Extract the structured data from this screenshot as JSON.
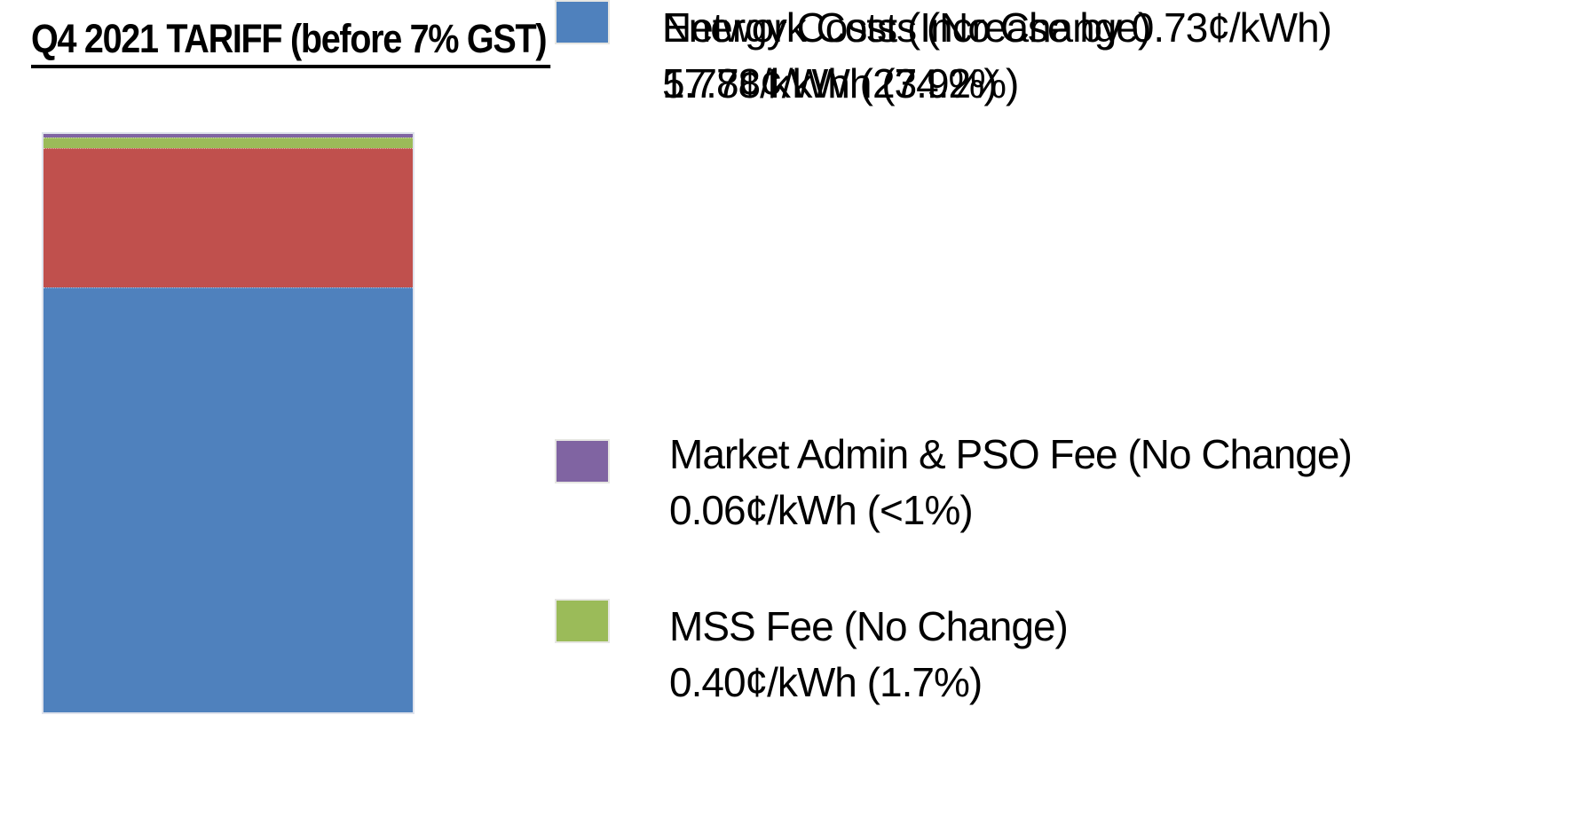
{
  "title": "Q4 2021 TARIFF (before 7% GST)",
  "chart_data": {
    "type": "bar",
    "subtype": "single-stacked-column",
    "title": "Q4 2021 TARIFF (before 7% GST)",
    "unit": "¢/kWh",
    "categories": [
      "Q4 2021 tariff"
    ],
    "total": 24.11,
    "series": [
      {
        "name": "Market Admin & PSO Fee (No Change)",
        "value": 0.06,
        "percent_label": "<1%",
        "color": "#8064A2"
      },
      {
        "name": "MSS Fee (No Change)",
        "value": 0.4,
        "percent_label": "1.7%",
        "color": "#9BBB59"
      },
      {
        "name": "Network Costs (No Change)",
        "value": 5.77,
        "percent_label": "23.9%",
        "color": "#C0504D"
      },
      {
        "name": "Energy Costs (Increase by 0.73¢/kWh)",
        "value": 17.88,
        "percent_label": "74.2%",
        "color": "#4F81BD"
      }
    ],
    "stack_order_top_to_bottom": [
      "Market Admin & PSO Fee",
      "MSS Fee",
      "Network Costs",
      "Energy Costs"
    ],
    "legend_position": "right",
    "grid": false,
    "axes_visible": false,
    "xlabel": "",
    "ylabel": ""
  },
  "legend": {
    "items": [
      {
        "label": "Market Admin & PSO Fee (No Change)",
        "value_line": "0.06¢/kWh (<1%)",
        "color": "#8064A2"
      },
      {
        "label": "MSS Fee (No Change)",
        "value_line": "0.40¢/kWh (1.7%)",
        "color": "#9BBB59"
      },
      {
        "label": "Network Costs (No Change)",
        "value_line": "5.77¢/kWh (23.9%)",
        "color": "#C0504D"
      },
      {
        "label": "Energy Costs (Increase by 0.73¢/kWh)",
        "value_line": "17.88¢/kWh (74.2%)",
        "color": "#4F81BD"
      }
    ]
  }
}
